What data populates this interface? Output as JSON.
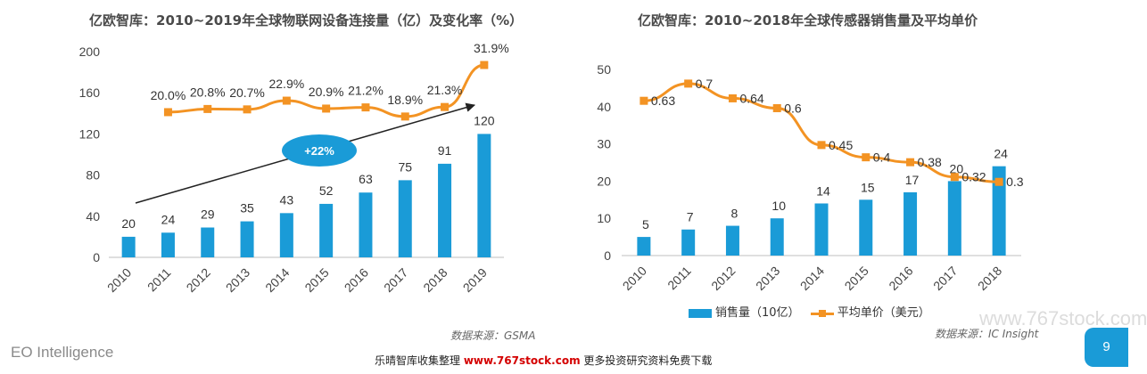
{
  "chart_data": [
    {
      "type": "bar",
      "title": "亿欧智库：2010~2019年全球物联网设备连接量（亿）及变化率（%）",
      "categories": [
        "2010",
        "2011",
        "2012",
        "2013",
        "2014",
        "2015",
        "2016",
        "2017",
        "2018",
        "2019"
      ],
      "series": [
        {
          "values": [
            20,
            24,
            29,
            35,
            43,
            52,
            63,
            75,
            91,
            120
          ],
          "color": "#1a9bd7"
        },
        {
          "values": [
            null,
            20.0,
            20.8,
            20.7,
            22.9,
            20.9,
            21.2,
            18.9,
            21.3,
            31.9
          ],
          "color": "#f39323",
          "labels": [
            "",
            "20.0%",
            "20.8%",
            "20.7%",
            "22.9%",
            "20.9%",
            "21.2%",
            "18.9%",
            "21.3%",
            "31.9%"
          ]
        }
      ],
      "ylim": [
        0,
        200
      ],
      "yticks": [
        0,
        40,
        80,
        120,
        160,
        200
      ],
      "annotation": "+22%",
      "source": "数据来源：GSMA"
    },
    {
      "type": "bar",
      "title": "亿欧智库：2010~2018年全球传感器销售量及平均单价",
      "categories": [
        "2010",
        "2011",
        "2012",
        "2013",
        "2014",
        "2015",
        "2016",
        "2017",
        "2018"
      ],
      "series": [
        {
          "name": "销售量（10亿）",
          "values": [
            5,
            7,
            8,
            10,
            14,
            15,
            17,
            20,
            24
          ],
          "color": "#1a9bd7"
        },
        {
          "name": "平均单价（美元）",
          "values": [
            0.63,
            0.7,
            0.64,
            0.6,
            0.45,
            0.4,
            0.38,
            0.32,
            0.3
          ],
          "color": "#f39323"
        }
      ],
      "ylim": [
        0,
        50
      ],
      "yticks": [
        0,
        10,
        20,
        30,
        40,
        50
      ],
      "source": "数据来源：IC Insight"
    }
  ],
  "footer": {
    "brand": "EO Intelligence",
    "note_prefix": "乐晴智库收集整理",
    "url": "www.767stock.com",
    "note_suffix": "更多投资研究资料免费下载",
    "watermark": "www.767stock.com",
    "page": "9"
  }
}
